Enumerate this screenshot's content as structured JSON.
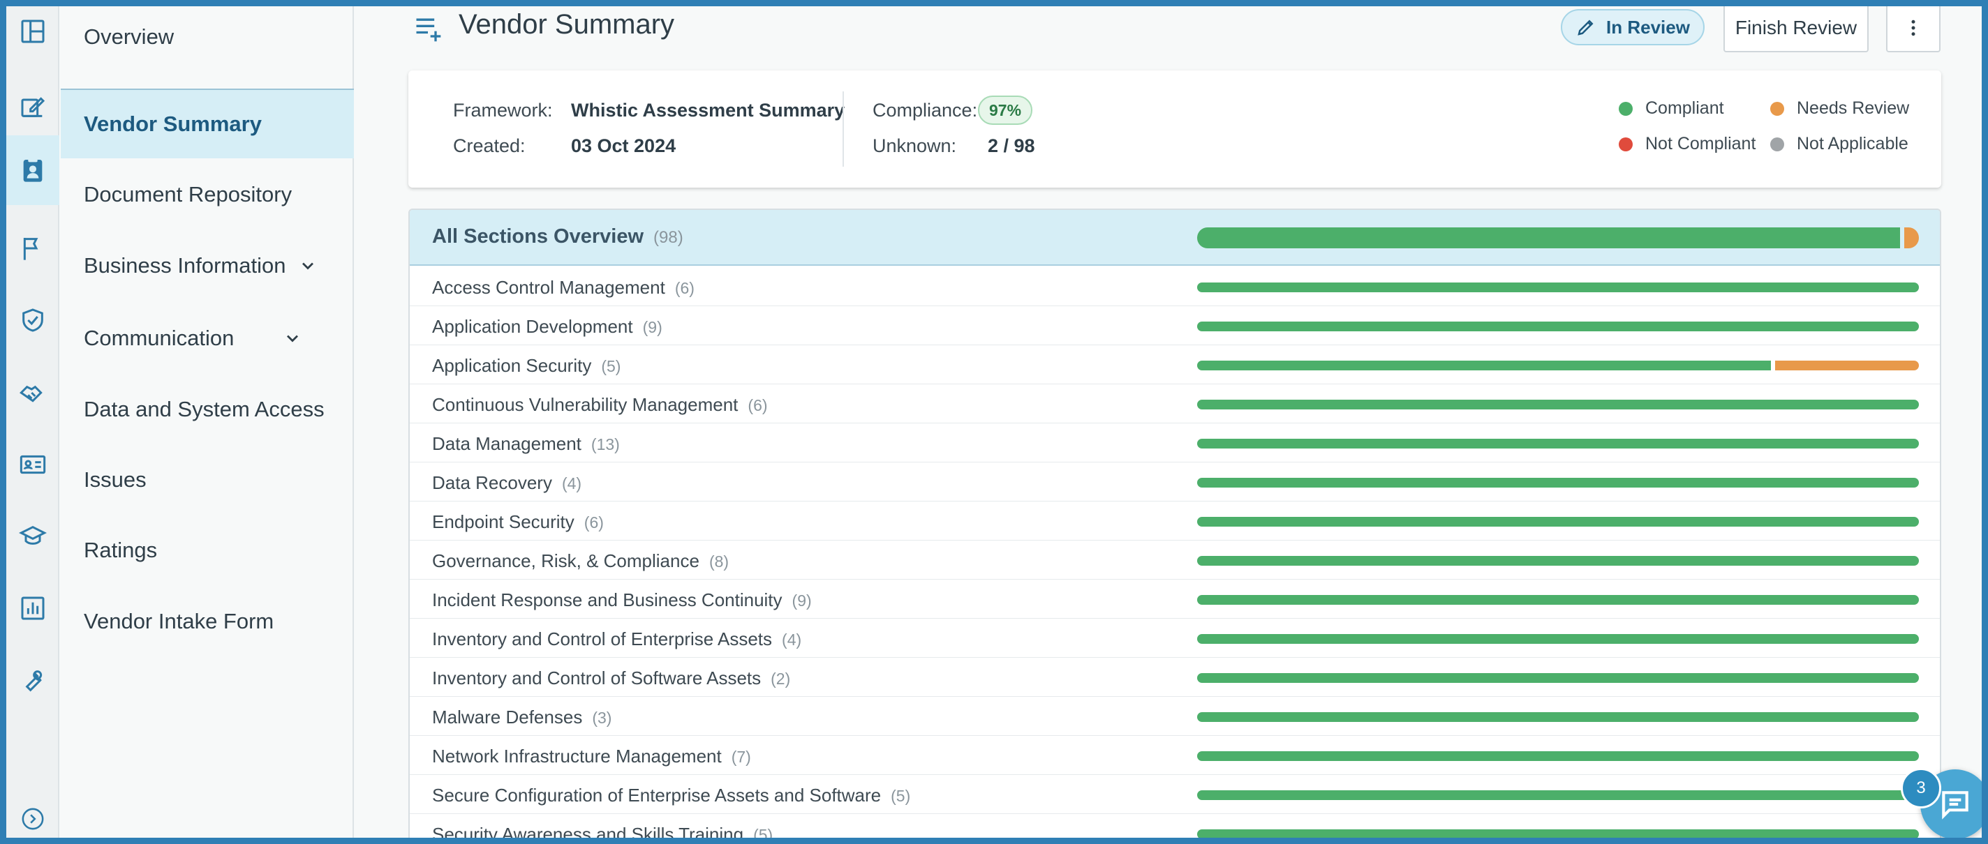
{
  "nav": {
    "items": [
      {
        "label": "Overview"
      },
      {
        "label": "Vendor Summary"
      },
      {
        "label": "Document Repository"
      },
      {
        "label": "Business Information"
      },
      {
        "label": "Communication"
      },
      {
        "label": "Data and System Access"
      },
      {
        "label": "Issues"
      },
      {
        "label": "Ratings"
      },
      {
        "label": "Vendor Intake Form"
      }
    ]
  },
  "rail": {
    "icons": [
      "layout-icon",
      "edit-icon",
      "vendor-contact-icon",
      "flag-icon",
      "shield-check-icon",
      "handshake-icon",
      "id-card-icon",
      "graduation-cap-icon",
      "bar-chart-icon",
      "wrench-icon",
      "expand-icon"
    ]
  },
  "header": {
    "title": "Vendor Summary",
    "status": "In Review",
    "finish_label": "Finish Review"
  },
  "summary": {
    "framework_label": "Framework:",
    "framework_value": "Whistic Assessment Summary",
    "created_label": "Created:",
    "created_value": "03 Oct 2024",
    "compliance_label": "Compliance:",
    "compliance_value": "97%",
    "unknown_label": "Unknown:",
    "unknown_value": "2 / 98"
  },
  "legend": [
    {
      "label": "Compliant",
      "color": "#4caf6a"
    },
    {
      "label": "Needs Review",
      "color": "#e8994a"
    },
    {
      "label": "Not Compliant",
      "color": "#e04b3c"
    },
    {
      "label": "Not Applicable",
      "color": "#a0a4a7"
    }
  ],
  "sections": {
    "all_label": "All Sections Overview",
    "all_count": "(98)",
    "all_compliant_fraction": 0.98,
    "all_review_fraction": 0.02,
    "rows": [
      {
        "label": "Access Control Management",
        "count": "(6)",
        "compliant": 1,
        "review": 0
      },
      {
        "label": "Application Development",
        "count": "(9)",
        "compliant": 1,
        "review": 0
      },
      {
        "label": "Application Security",
        "count": "(5)",
        "compliant": 0.8,
        "review": 0.2
      },
      {
        "label": "Continuous Vulnerability Management",
        "count": "(6)",
        "compliant": 1,
        "review": 0
      },
      {
        "label": "Data Management",
        "count": "(13)",
        "compliant": 1,
        "review": 0
      },
      {
        "label": "Data Recovery",
        "count": "(4)",
        "compliant": 1,
        "review": 0
      },
      {
        "label": "Endpoint Security",
        "count": "(6)",
        "compliant": 1,
        "review": 0
      },
      {
        "label": "Governance, Risk, & Compliance",
        "count": "(8)",
        "compliant": 1,
        "review": 0
      },
      {
        "label": "Incident Response and Business Continuity",
        "count": "(9)",
        "compliant": 1,
        "review": 0
      },
      {
        "label": "Inventory and Control of Enterprise Assets",
        "count": "(4)",
        "compliant": 1,
        "review": 0
      },
      {
        "label": "Inventory and Control of Software Assets",
        "count": "(2)",
        "compliant": 1,
        "review": 0
      },
      {
        "label": "Malware Defenses",
        "count": "(3)",
        "compliant": 1,
        "review": 0
      },
      {
        "label": "Network Infrastructure Management",
        "count": "(7)",
        "compliant": 1,
        "review": 0
      },
      {
        "label": "Secure Configuration of Enterprise Assets and Software",
        "count": "(5)",
        "compliant": 1,
        "review": 0
      },
      {
        "label": "Security Awareness and Skills Training",
        "count": "(5)",
        "compliant": 1,
        "review": 0
      }
    ]
  },
  "chat": {
    "badge": "3"
  }
}
